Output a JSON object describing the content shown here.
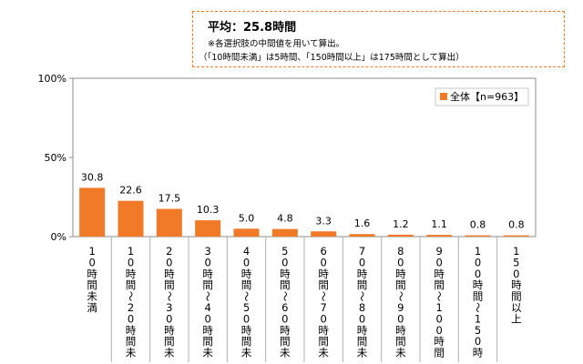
{
  "note": {
    "title": "平均：25.8時間",
    "line1": "※各選択肢の中間値を用いて算出。",
    "line2": "（「10時間未満」は5時間、「150時間以上」は175時間として算出）"
  },
  "chart_data": {
    "type": "bar",
    "title": "",
    "xlabel": "",
    "ylabel": "",
    "ylim": [
      0,
      100
    ],
    "yticks": [
      "0%",
      "50%",
      "100%"
    ],
    "legend": "top-right",
    "grid": false,
    "bar_color": "#f07a28",
    "categories": [
      "10時間未満",
      "10時間〜20時間未満",
      "20時間〜30時間未満",
      "30時間〜40時間未満",
      "40時間〜50時間未満",
      "50時間〜60時間未満",
      "60時間〜70時間未満",
      "70時間〜80時間未満",
      "80時間〜90時間未満",
      "90時間〜100時間未満",
      "100時間〜150時間未満",
      "150時間以上"
    ],
    "series": [
      {
        "name": "全体【n=963】",
        "values": [
          30.8,
          22.6,
          17.5,
          10.3,
          5.0,
          4.8,
          3.3,
          1.6,
          1.2,
          1.1,
          0.8,
          0.8
        ],
        "labels": [
          "30.8",
          "22.6",
          "17.5",
          "10.3",
          "5.0",
          "4.8",
          "3.3",
          "1.6",
          "1.2",
          "1.1",
          "0.8",
          "0.8"
        ]
      }
    ]
  }
}
